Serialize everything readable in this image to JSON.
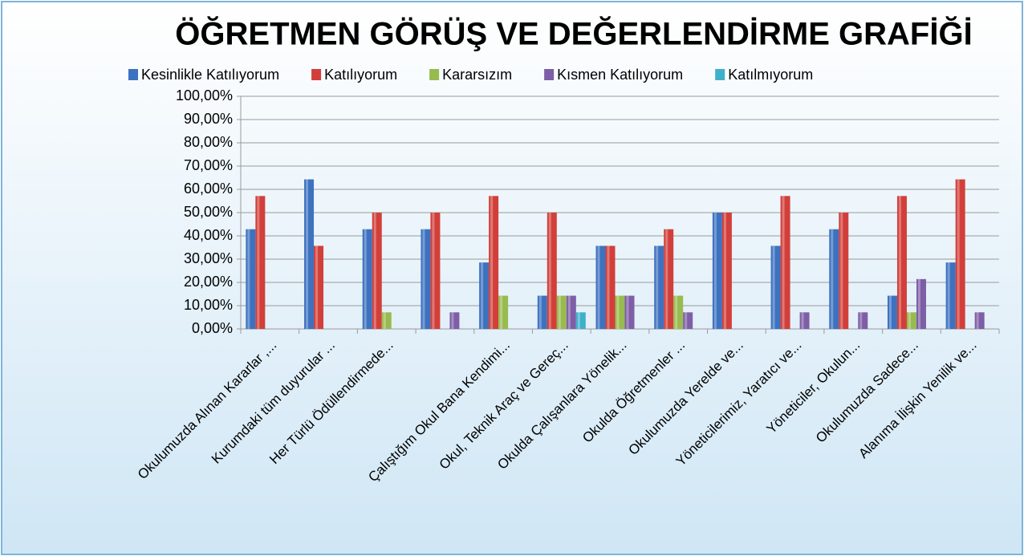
{
  "chart_data": {
    "type": "bar",
    "title": "ÖĞRETMEN GÖRÜŞ VE DEĞERLENDİRME GRAFİĞİ",
    "categories": [
      "Okulumuzda Alınan Kararlar ,...",
      "Kurumdaki tüm duyurular ...",
      "Her Türlü Ödüllendirmede...",
      null,
      "Çalıştığım Okul Bana Kendimi...",
      "Okul, Teknik Araç ve Gereç...",
      "Okulda Çalışanlara Yönelik...",
      "Okulda Öğretmenler ...",
      "Okulumuzda Yerelde ve...",
      "Yöneticilerimiz, Yaratıcı ve...",
      "Yöneticiler, Okulun...",
      "Okulumuzda Sadece...",
      "Alanıma İlişkin Yenilik ve..."
    ],
    "series": [
      {
        "name": "Kesinlikle Katılıyorum",
        "color": "#3d72c0",
        "values": [
          42.86,
          64.29,
          42.86,
          42.86,
          28.57,
          14.29,
          35.71,
          35.71,
          50,
          35.71,
          42.86,
          14.29,
          28.57
        ]
      },
      {
        "name": "Katılıyorum",
        "color": "#d23f3a",
        "values": [
          57.14,
          35.71,
          50,
          50,
          57.14,
          50,
          35.71,
          42.86,
          50,
          57.14,
          50,
          57.14,
          64.29
        ]
      },
      {
        "name": "Kararsızım",
        "color": "#98bb4f",
        "values": [
          0,
          0,
          7.14,
          0,
          14.29,
          14.29,
          14.29,
          14.29,
          0,
          0,
          0,
          7.14,
          0
        ]
      },
      {
        "name": "Kısmen Katılıyorum",
        "color": "#7e5ea6",
        "values": [
          0,
          0,
          0,
          7.14,
          0,
          14.29,
          14.29,
          7.14,
          0,
          7.14,
          7.14,
          21.43,
          7.14
        ]
      },
      {
        "name": "Katılmıyorum",
        "color": "#3fb0c9",
        "values": [
          0,
          0,
          0,
          0,
          0,
          7.14,
          0,
          0,
          0,
          0,
          0,
          0,
          0
        ]
      }
    ],
    "ylim": [
      0,
      100
    ],
    "yticks": [
      {
        "value": 0,
        "label": "0,00%"
      },
      {
        "value": 10,
        "label": "10,00%"
      },
      {
        "value": 20,
        "label": "20,00%"
      },
      {
        "value": 30,
        "label": "30,00%"
      },
      {
        "value": 40,
        "label": "40,00%"
      },
      {
        "value": 50,
        "label": "50,00%"
      },
      {
        "value": 60,
        "label": "60,00%"
      },
      {
        "value": 70,
        "label": "70,00%"
      },
      {
        "value": 80,
        "label": "80,00%"
      },
      {
        "value": 90,
        "label": "90,00%"
      },
      {
        "value": 100,
        "label": "100,00%"
      }
    ],
    "grid": true
  }
}
